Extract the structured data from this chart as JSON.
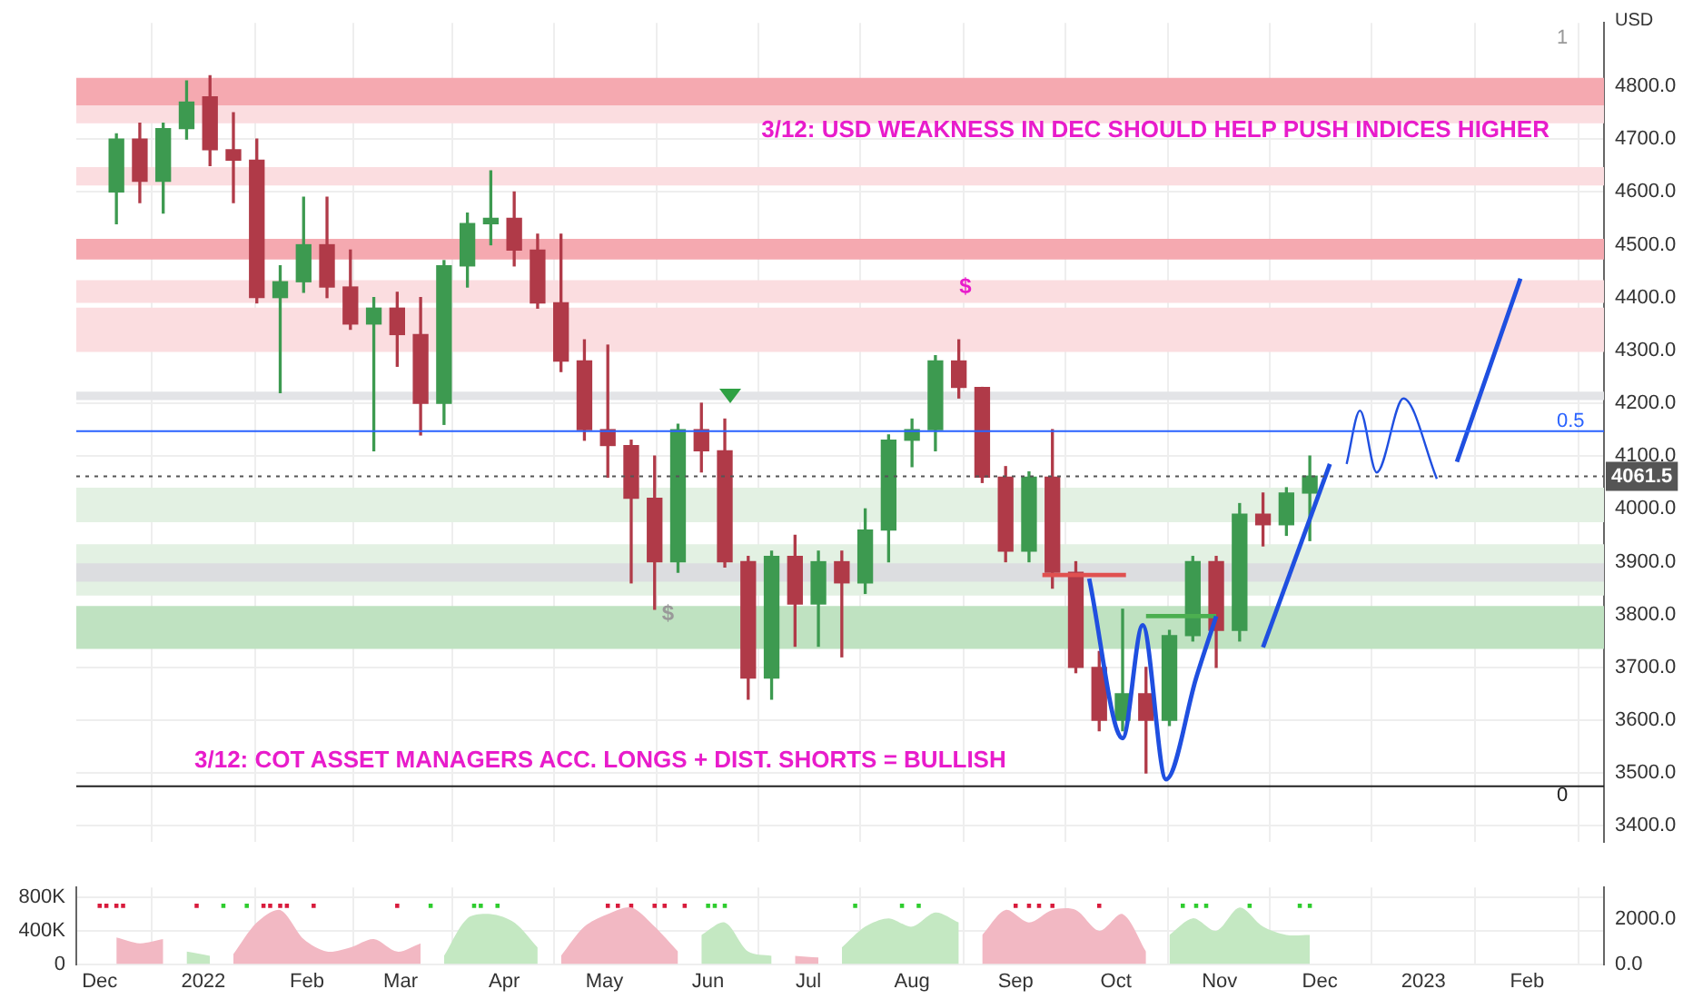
{
  "chart_data": [
    {
      "type": "candlestick",
      "ylabel": "USD",
      "x": [
        "2021-12-06",
        "2021-12-13",
        "2021-12-20",
        "2021-12-27",
        "2022-01-03",
        "2022-01-10",
        "2022-01-17",
        "2022-01-24",
        "2022-01-31",
        "2022-02-07",
        "2022-02-14",
        "2022-02-21",
        "2022-02-28",
        "2022-03-07",
        "2022-03-14",
        "2022-03-21",
        "2022-03-28",
        "2022-04-04",
        "2022-04-11",
        "2022-04-18",
        "2022-04-25",
        "2022-05-02",
        "2022-05-09",
        "2022-05-16",
        "2022-05-23",
        "2022-05-30",
        "2022-06-06",
        "2022-06-13",
        "2022-06-20",
        "2022-06-27",
        "2022-07-04",
        "2022-07-11",
        "2022-07-18",
        "2022-07-25",
        "2022-08-01",
        "2022-08-08",
        "2022-08-15",
        "2022-08-22",
        "2022-08-29",
        "2022-09-05",
        "2022-09-12",
        "2022-09-19",
        "2022-09-26",
        "2022-10-03",
        "2022-10-10",
        "2022-10-17",
        "2022-10-24",
        "2022-10-31",
        "2022-11-07",
        "2022-11-14",
        "2022-11-21",
        "2022-11-28"
      ],
      "ohlc": [
        [
          4600,
          4710,
          4540,
          4700
        ],
        [
          4700,
          4730,
          4580,
          4620
        ],
        [
          4620,
          4730,
          4560,
          4720
        ],
        [
          4720,
          4810,
          4700,
          4770
        ],
        [
          4780,
          4820,
          4650,
          4680
        ],
        [
          4680,
          4750,
          4580,
          4660
        ],
        [
          4660,
          4700,
          4390,
          4400
        ],
        [
          4400,
          4460,
          4220,
          4430
        ],
        [
          4430,
          4590,
          4410,
          4500
        ],
        [
          4500,
          4590,
          4400,
          4420
        ],
        [
          4420,
          4490,
          4340,
          4350
        ],
        [
          4350,
          4400,
          4110,
          4380
        ],
        [
          4380,
          4410,
          4270,
          4330
        ],
        [
          4330,
          4400,
          4140,
          4200
        ],
        [
          4200,
          4470,
          4160,
          4460
        ],
        [
          4460,
          4560,
          4420,
          4540
        ],
        [
          4540,
          4640,
          4500,
          4550
        ],
        [
          4550,
          4600,
          4460,
          4490
        ],
        [
          4490,
          4520,
          4380,
          4390
        ],
        [
          4390,
          4520,
          4260,
          4280
        ],
        [
          4280,
          4320,
          4130,
          4150
        ],
        [
          4150,
          4310,
          4060,
          4120
        ],
        [
          4120,
          4130,
          3860,
          4020
        ],
        [
          4020,
          4100,
          3810,
          3900
        ],
        [
          3900,
          4160,
          3880,
          4150
        ],
        [
          4150,
          4200,
          4070,
          4110
        ],
        [
          4110,
          4170,
          3890,
          3900
        ],
        [
          3900,
          3910,
          3640,
          3680
        ],
        [
          3680,
          3920,
          3640,
          3910
        ],
        [
          3910,
          3950,
          3740,
          3820
        ],
        [
          3820,
          3920,
          3740,
          3900
        ],
        [
          3900,
          3920,
          3720,
          3860
        ],
        [
          3860,
          4000,
          3840,
          3960
        ],
        [
          3960,
          4140,
          3900,
          4130
        ],
        [
          4130,
          4170,
          4080,
          4150
        ],
        [
          4150,
          4290,
          4110,
          4280
        ],
        [
          4280,
          4320,
          4210,
          4230
        ],
        [
          4230,
          4230,
          4050,
          4060
        ],
        [
          4060,
          4080,
          3900,
          3920
        ],
        [
          3920,
          4070,
          3900,
          4060
        ],
        [
          4060,
          4150,
          3850,
          3880
        ],
        [
          3880,
          3900,
          3690,
          3700
        ],
        [
          3700,
          3730,
          3580,
          3600
        ],
        [
          3600,
          3810,
          3580,
          3650
        ],
        [
          3650,
          3700,
          3500,
          3600
        ],
        [
          3600,
          3770,
          3590,
          3760
        ],
        [
          3760,
          3910,
          3750,
          3900
        ],
        [
          3900,
          3910,
          3700,
          3770
        ],
        [
          3770,
          4010,
          3750,
          3990
        ],
        [
          3990,
          4030,
          3930,
          3970
        ],
        [
          3970,
          4040,
          3950,
          4030
        ],
        [
          4030,
          4100,
          3940,
          4062
        ]
      ],
      "colors": [
        "#3d9a50",
        "#b03a48",
        "#3d9a50",
        "#3d9a50",
        "#b03a48",
        "#b03a48",
        "#b03a48",
        "#3d9a50",
        "#3d9a50",
        "#b03a48",
        "#b03a48",
        "#3d9a50",
        "#b03a48",
        "#b03a48",
        "#3d9a50",
        "#3d9a50",
        "#3d9a50",
        "#b03a48",
        "#b03a48",
        "#b03a48",
        "#b03a48",
        "#b03a48",
        "#b03a48",
        "#b03a48",
        "#3d9a50",
        "#b03a48",
        "#b03a48",
        "#b03a48",
        "#3d9a50",
        "#b03a48",
        "#3d9a50",
        "#b03a48",
        "#3d9a50",
        "#3d9a50",
        "#3d9a50",
        "#3d9a50",
        "#b03a48",
        "#b03a48",
        "#b03a48",
        "#3d9a50",
        "#b03a48",
        "#b03a48",
        "#b03a48",
        "#3d9a50",
        "#b03a48",
        "#3d9a50",
        "#3d9a50",
        "#b03a48",
        "#3d9a50",
        "#b03a48",
        "#3d9a50",
        "#3d9a50"
      ],
      "series": [
        {
          "type": "line",
          "color": "#1f4fe0",
          "x": [
            "2022-09-23",
            "2022-10-03",
            "2022-10-09",
            "2022-10-16",
            "2022-10-25",
            "2022-10-31"
          ],
          "values": [
            3868,
            3566,
            3780,
            3488,
            3680,
            3797
          ]
        },
        {
          "type": "line",
          "color": "#1f4fe0",
          "x": [
            "2022-11-14",
            "2022-12-04"
          ],
          "values": [
            3738,
            4085
          ]
        },
        {
          "type": "line",
          "color": "#1f4fe0",
          "x": [
            "2022-12-09",
            "2022-12-13",
            "2022-12-18",
            "2022-12-26",
            "2023-01-05"
          ],
          "values": [
            4085,
            4186,
            4069,
            4209,
            4057
          ]
        },
        {
          "type": "line",
          "color": "#1f4fe0",
          "x": [
            "2023-01-11",
            "2023-01-30"
          ],
          "values": [
            4089,
            4436
          ]
        },
        {
          "type": "line",
          "color": "#e05050",
          "x": [
            "2022-09-09",
            "2022-10-04"
          ],
          "values": [
            3875,
            3875
          ]
        },
        {
          "type": "line",
          "color": "#4caf50",
          "x": [
            "2022-10-10",
            "2022-10-31"
          ],
          "values": [
            3797,
            3797
          ]
        }
      ],
      "bands": [
        {
          "axis": "y",
          "from": 4764,
          "to": 4816,
          "color": "#f5a9b0"
        },
        {
          "axis": "y",
          "from": 4730,
          "to": 4764,
          "color": "#fbdde0"
        },
        {
          "axis": "y",
          "from": 4612,
          "to": 4647,
          "color": "#fbdde0"
        },
        {
          "axis": "y",
          "from": 4472,
          "to": 4511,
          "color": "#f5a9b0"
        },
        {
          "axis": "y",
          "from": 4390,
          "to": 4433,
          "color": "#fbdde0"
        },
        {
          "axis": "y",
          "from": 4297,
          "to": 4381,
          "color": "#fbdde0"
        },
        {
          "axis": "y",
          "from": 4206,
          "to": 4222,
          "color": "#e3e4e7"
        },
        {
          "axis": "y",
          "from": 3975,
          "to": 4040,
          "color": "#e3f1e3"
        },
        {
          "axis": "y",
          "from": 3836,
          "to": 3933,
          "color": "#e3f1e3"
        },
        {
          "axis": "y",
          "from": 3862,
          "to": 3897,
          "color": "#dcdde0"
        },
        {
          "axis": "y",
          "from": 3735,
          "to": 3816,
          "color": "#bfe2c1"
        }
      ],
      "ref_lines": [
        {
          "axis": "y",
          "value": 4147,
          "color": "#2962ff",
          "line_style": "solid"
        },
        {
          "axis": "y",
          "value": 3475,
          "color": "#222222",
          "line_style": "solid"
        },
        {
          "axis": "y",
          "value": 4061.5,
          "label": "4061.5",
          "color": "#555555",
          "line_style": "dotted"
        }
      ],
      "annotations": [
        "3/12: USD WEAKNESS IN DEC SHOULD HELP PUSH INDICES HIGHER",
        "3/12: COT ASSET MANAGERS ACC. LONGS + DIST. SHORTS = BULLISH",
        "0.5",
        "0",
        "1",
        {
          "text": "$",
          "x": "2022-08-17",
          "y": 4420
        },
        {
          "text": "$",
          "x": "2022-05-20",
          "y": 3800
        }
      ],
      "xlim": [
        "2021-11-24",
        "2023-02-24"
      ],
      "xticks": [
        {
          "value": "2021-12-01",
          "label": null
        },
        {
          "value": "2022-01-01",
          "label": null
        },
        {
          "value": "2022-02-01",
          "label": null
        },
        {
          "value": "2022-03-01",
          "label": null
        },
        {
          "value": "2022-04-01",
          "label": null
        },
        {
          "value": "2022-05-01",
          "label": null
        },
        {
          "value": "2022-06-01",
          "label": null
        },
        {
          "value": "2022-07-01",
          "label": null
        },
        {
          "value": "2022-08-01",
          "label": null
        },
        {
          "value": "2022-09-01",
          "label": null
        },
        {
          "value": "2022-10-01",
          "label": null
        },
        {
          "value": "2022-11-01",
          "label": null
        },
        {
          "value": "2022-12-01",
          "label": null
        },
        {
          "value": "2023-01-01",
          "label": null
        },
        {
          "value": "2023-02-01",
          "label": null
        }
      ],
      "ylim": [
        3370,
        4920
      ],
      "yticks": [
        {
          "value": 3400,
          "label": "3400.0"
        },
        {
          "value": 3500,
          "label": "3500.0"
        },
        {
          "value": 3600,
          "label": "3600.0"
        },
        {
          "value": 3700,
          "label": "3700.0"
        },
        {
          "value": 3800,
          "label": "3800.0"
        },
        {
          "value": 3900,
          "label": "3900.0"
        },
        {
          "value": 4000,
          "label": "4000.0"
        },
        {
          "value": 4100,
          "label": "4100.0"
        },
        {
          "value": 4200,
          "label": "4200.0"
        },
        {
          "value": 4300,
          "label": "4300.0"
        },
        {
          "value": 4400,
          "label": "4400.0"
        },
        {
          "value": 4500,
          "label": "4500.0"
        },
        {
          "value": 4600,
          "label": "4600.0"
        },
        {
          "value": 4700,
          "label": "4700.0"
        },
        {
          "value": 4800,
          "label": "4800.0"
        }
      ],
      "tick_labels": "y",
      "grid": true,
      "legend": false
    },
    {
      "type": "area",
      "x": [
        "2021-12-06",
        "2021-12-13",
        "2021-12-20",
        "2021-12-27",
        "2022-01-03",
        "2022-01-10",
        "2022-01-17",
        "2022-01-24",
        "2022-01-31",
        "2022-02-07",
        "2022-02-14",
        "2022-02-21",
        "2022-02-28",
        "2022-03-07",
        "2022-03-14",
        "2022-03-21",
        "2022-03-28",
        "2022-04-04",
        "2022-04-11",
        "2022-04-18",
        "2022-04-25",
        "2022-05-02",
        "2022-05-09",
        "2022-05-16",
        "2022-05-23",
        "2022-05-30",
        "2022-06-06",
        "2022-06-13",
        "2022-06-20",
        "2022-06-27",
        "2022-07-04",
        "2022-07-11",
        "2022-07-18",
        "2022-07-25",
        "2022-08-01",
        "2022-08-08",
        "2022-08-15",
        "2022-08-22",
        "2022-08-29",
        "2022-09-05",
        "2022-09-12",
        "2022-09-19",
        "2022-09-26",
        "2022-10-03",
        "2022-10-10",
        "2022-10-17",
        "2022-10-24",
        "2022-10-31",
        "2022-11-07",
        "2022-11-14",
        "2022-11-21",
        "2022-11-28"
      ],
      "series": [
        {
          "color": "#f2b8c3",
          "values": [
            320000,
            250000,
            300000,
            null,
            null,
            120000,
            500000,
            650000,
            300000,
            150000,
            200000,
            300000,
            150000,
            250000,
            null,
            null,
            null,
            null,
            null,
            100000,
            450000,
            600000,
            680000,
            450000,
            150000,
            null,
            null,
            null,
            null,
            100000,
            80000,
            null,
            null,
            null,
            null,
            null,
            null,
            350000,
            650000,
            500000,
            650000,
            650000,
            400000,
            600000,
            150000,
            null,
            null,
            null,
            null,
            null,
            null,
            null
          ]
        },
        {
          "color": "#c4e8c2",
          "values": [
            null,
            null,
            null,
            150000,
            100000,
            null,
            null,
            null,
            null,
            null,
            null,
            null,
            null,
            null,
            100000,
            550000,
            600000,
            500000,
            200000,
            null,
            null,
            null,
            null,
            null,
            null,
            350000,
            500000,
            150000,
            100000,
            null,
            null,
            200000,
            450000,
            550000,
            450000,
            620000,
            500000,
            null,
            null,
            null,
            null,
            null,
            null,
            null,
            null,
            350000,
            550000,
            400000,
            680000,
            450000,
            350000,
            350000
          ]
        },
        {
          "type": "scatter",
          "marker": "square",
          "color": "#d81b3c",
          "x": [
            "2021-12-01",
            "2021-12-03",
            "2021-12-06",
            "2021-12-08",
            "2021-12-30",
            "2022-01-19",
            "2022-01-21",
            "2022-01-24",
            "2022-01-26",
            "2022-02-03",
            "2022-02-28",
            "2022-05-02",
            "2022-05-05",
            "2022-05-09",
            "2022-05-16",
            "2022-05-19",
            "2022-05-25",
            "2022-09-01",
            "2022-09-05",
            "2022-09-08",
            "2022-09-12",
            "2022-09-26"
          ],
          "values": [
            700000,
            700000,
            700000,
            700000,
            700000,
            700000,
            700000,
            700000,
            700000,
            700000,
            700000,
            700000,
            700000,
            700000,
            700000,
            700000,
            700000,
            700000,
            700000,
            700000,
            700000,
            700000
          ]
        },
        {
          "type": "scatter",
          "marker": "square",
          "color": "#2ecc2e",
          "x": [
            "2022-01-07",
            "2022-01-14",
            "2022-03-10",
            "2022-03-23",
            "2022-03-25",
            "2022-03-30",
            "2022-06-01",
            "2022-06-03",
            "2022-06-06",
            "2022-07-15",
            "2022-07-29",
            "2022-08-03",
            "2022-10-21",
            "2022-10-25",
            "2022-10-28",
            "2022-11-10",
            "2022-11-25",
            "2022-11-28"
          ],
          "values": [
            700000,
            700000,
            700000,
            700000,
            700000,
            700000,
            700000,
            700000,
            700000,
            700000,
            700000,
            700000,
            700000,
            700000,
            700000,
            700000,
            700000,
            700000
          ]
        }
      ],
      "xlim": [
        "2021-11-24",
        "2023-02-24"
      ],
      "xticks": [
        {
          "value": "2021-12-01",
          "label": "Dec"
        },
        {
          "value": "2022-01-01",
          "label": "2022"
        },
        {
          "value": "2022-02-01",
          "label": "Feb"
        },
        {
          "value": "2022-03-01",
          "label": "Mar"
        },
        {
          "value": "2022-04-01",
          "label": "Apr"
        },
        {
          "value": "2022-05-01",
          "label": "May"
        },
        {
          "value": "2022-06-01",
          "label": "Jun"
        },
        {
          "value": "2022-07-01",
          "label": "Jul"
        },
        {
          "value": "2022-08-01",
          "label": "Aug"
        },
        {
          "value": "2022-09-01",
          "label": "Sep"
        },
        {
          "value": "2022-10-01",
          "label": "Oct"
        },
        {
          "value": "2022-11-01",
          "label": "Nov"
        },
        {
          "value": "2022-12-01",
          "label": "Dec"
        },
        {
          "value": "2023-01-01",
          "label": "2023"
        },
        {
          "value": "2023-02-01",
          "label": "Feb"
        }
      ],
      "ylim": [
        0,
        920000
      ],
      "yticks": [
        {
          "value": 0,
          "label": "0"
        },
        {
          "value": 400000,
          "label": "400K"
        },
        {
          "value": 800000,
          "label": "800K"
        }
      ],
      "y2lim": [
        0,
        3380
      ],
      "y2ticks": [
        {
          "value": 0,
          "label": "0.0"
        },
        {
          "value": 2000,
          "label": "2000.0"
        }
      ],
      "grid": true,
      "legend": false
    }
  ]
}
